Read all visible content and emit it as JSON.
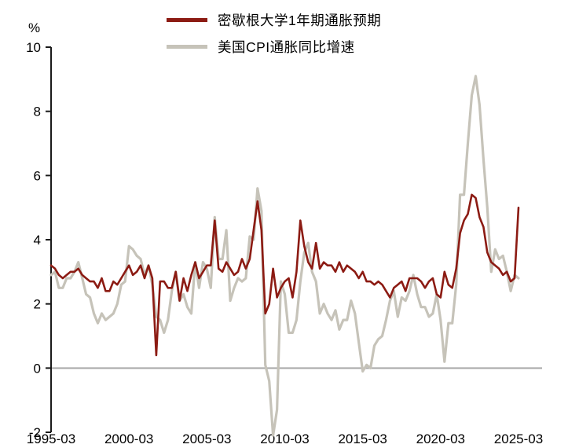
{
  "chart_data": {
    "type": "line",
    "title": "",
    "ylabel": "%",
    "xlabel": "",
    "grid": false,
    "legend_position": "top-center",
    "xlim": [
      1995.25,
      2025.25
    ],
    "ylim": [
      -2,
      10
    ],
    "x_start": 1995.25,
    "x_step": 0.25,
    "x_unit": "decimal-year (quarterly samples, Mar/Jun/Sep/Dec)",
    "yticks": [
      10,
      8,
      6,
      4,
      2,
      0,
      -2
    ],
    "ytick_labels": [
      "10",
      "8",
      "6",
      "4",
      "2",
      "0",
      "-2"
    ],
    "xticks": [
      1995.25,
      2000.25,
      2005.25,
      2010.25,
      2015.25,
      2020.25,
      2025.25
    ],
    "xtick_labels": [
      "1995-03",
      "2000-03",
      "2005-03",
      "2010-03",
      "2015-03",
      "2020-03",
      "2025-03"
    ],
    "colors": {
      "axis": "#1a1a1a",
      "zero_line": "#a9a9a9",
      "text": "#000000"
    },
    "series": [
      {
        "name": "密歇根大学1年期通胀预期",
        "color": "#8c1b13",
        "stroke_width": 2.6,
        "values": [
          3.2,
          3.1,
          2.9,
          2.8,
          2.9,
          3.0,
          3.0,
          3.1,
          2.9,
          2.8,
          2.7,
          2.7,
          2.5,
          2.8,
          2.4,
          2.4,
          2.7,
          2.6,
          2.8,
          3.0,
          3.2,
          2.9,
          3.0,
          3.2,
          2.8,
          3.2,
          2.8,
          0.4,
          2.7,
          2.7,
          2.5,
          2.5,
          3.0,
          2.1,
          2.8,
          2.4,
          2.9,
          3.3,
          2.8,
          3.0,
          3.2,
          3.2,
          4.6,
          3.1,
          3.0,
          3.3,
          3.1,
          2.9,
          3.0,
          3.4,
          3.1,
          3.4,
          4.3,
          5.2,
          4.3,
          1.7,
          2.0,
          3.1,
          2.2,
          2.5,
          2.7,
          2.8,
          2.2,
          3.0,
          4.6,
          3.8,
          3.3,
          3.1,
          3.9,
          3.1,
          3.3,
          3.2,
          3.2,
          3.0,
          3.3,
          3.0,
          3.2,
          3.1,
          3.0,
          2.8,
          3.0,
          2.7,
          2.7,
          2.6,
          2.7,
          2.6,
          2.4,
          2.2,
          2.5,
          2.6,
          2.7,
          2.4,
          2.8,
          2.8,
          2.8,
          2.7,
          2.5,
          2.7,
          2.8,
          2.3,
          2.2,
          3.0,
          2.6,
          2.5,
          3.1,
          4.2,
          4.6,
          4.8,
          5.4,
          5.3,
          4.7,
          4.4,
          3.6,
          3.3,
          3.2,
          3.1,
          2.9,
          3.0,
          2.7,
          2.8,
          5.0
        ]
      },
      {
        "name": "美国CPI通胀同比增速",
        "color": "#c6c3b9",
        "stroke_width": 3.2,
        "values": [
          2.9,
          3.0,
          2.5,
          2.5,
          2.8,
          2.8,
          3.0,
          3.3,
          2.8,
          2.3,
          2.2,
          1.7,
          1.4,
          1.7,
          1.5,
          1.6,
          1.7,
          2.0,
          2.6,
          2.7,
          3.8,
          3.7,
          3.5,
          3.4,
          2.9,
          3.2,
          2.6,
          1.6,
          1.5,
          1.1,
          1.5,
          2.4,
          3.0,
          2.1,
          2.3,
          1.9,
          1.7,
          3.3,
          2.5,
          3.3,
          3.1,
          2.5,
          4.7,
          3.4,
          3.4,
          4.3,
          2.1,
          2.5,
          2.8,
          2.7,
          2.8,
          4.1,
          4.0,
          5.6,
          4.9,
          0.1,
          -0.4,
          -2.1,
          -1.3,
          2.7,
          2.3,
          1.1,
          1.1,
          1.5,
          2.7,
          3.6,
          3.9,
          3.0,
          2.7,
          1.7,
          2.0,
          1.7,
          1.5,
          1.8,
          1.2,
          1.5,
          1.5,
          2.1,
          1.7,
          0.8,
          -0.1,
          0.1,
          0.0,
          0.7,
          0.9,
          1.0,
          1.5,
          2.1,
          2.4,
          1.6,
          2.2,
          2.1,
          2.4,
          2.9,
          2.3,
          1.9,
          1.9,
          1.6,
          1.7,
          2.3,
          1.5,
          0.2,
          1.4,
          1.4,
          2.6,
          5.4,
          5.4,
          7.0,
          8.5,
          9.1,
          8.2,
          6.5,
          5.0,
          3.0,
          3.7,
          3.4,
          3.5,
          3.0,
          2.4,
          2.9,
          2.8
        ]
      }
    ]
  }
}
